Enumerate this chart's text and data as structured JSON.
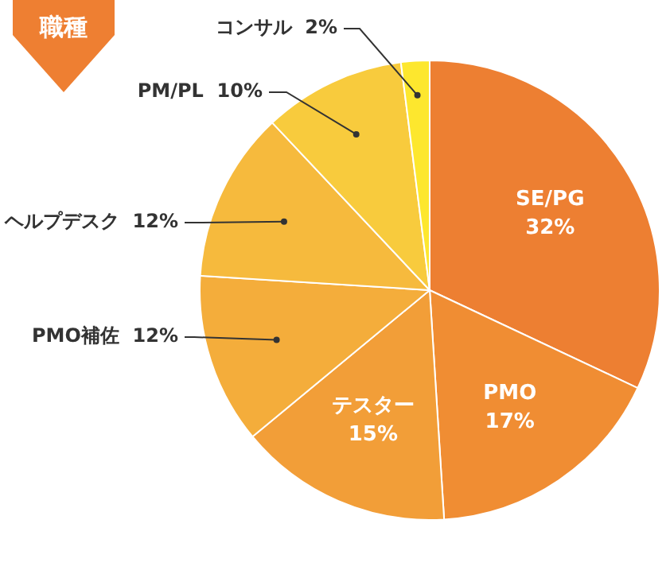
{
  "chart_data": {
    "type": "pie",
    "title": "職種",
    "categories": [
      "SE/PG",
      "PMO",
      "テスター",
      "PMO補佐",
      "ヘルプデスク",
      "PM/PL",
      "コンサル"
    ],
    "values": [
      32,
      17,
      15,
      12,
      12,
      10,
      2
    ],
    "value_labels": [
      "32%",
      "17%",
      "15%",
      "12%",
      "12%",
      "10%",
      "2%"
    ],
    "colors": [
      "#ed7f32",
      "#f08d33",
      "#f29e38",
      "#f4ad3b",
      "#f6ba3d",
      "#f8cb3d",
      "#fde72e"
    ],
    "legend": false
  }
}
